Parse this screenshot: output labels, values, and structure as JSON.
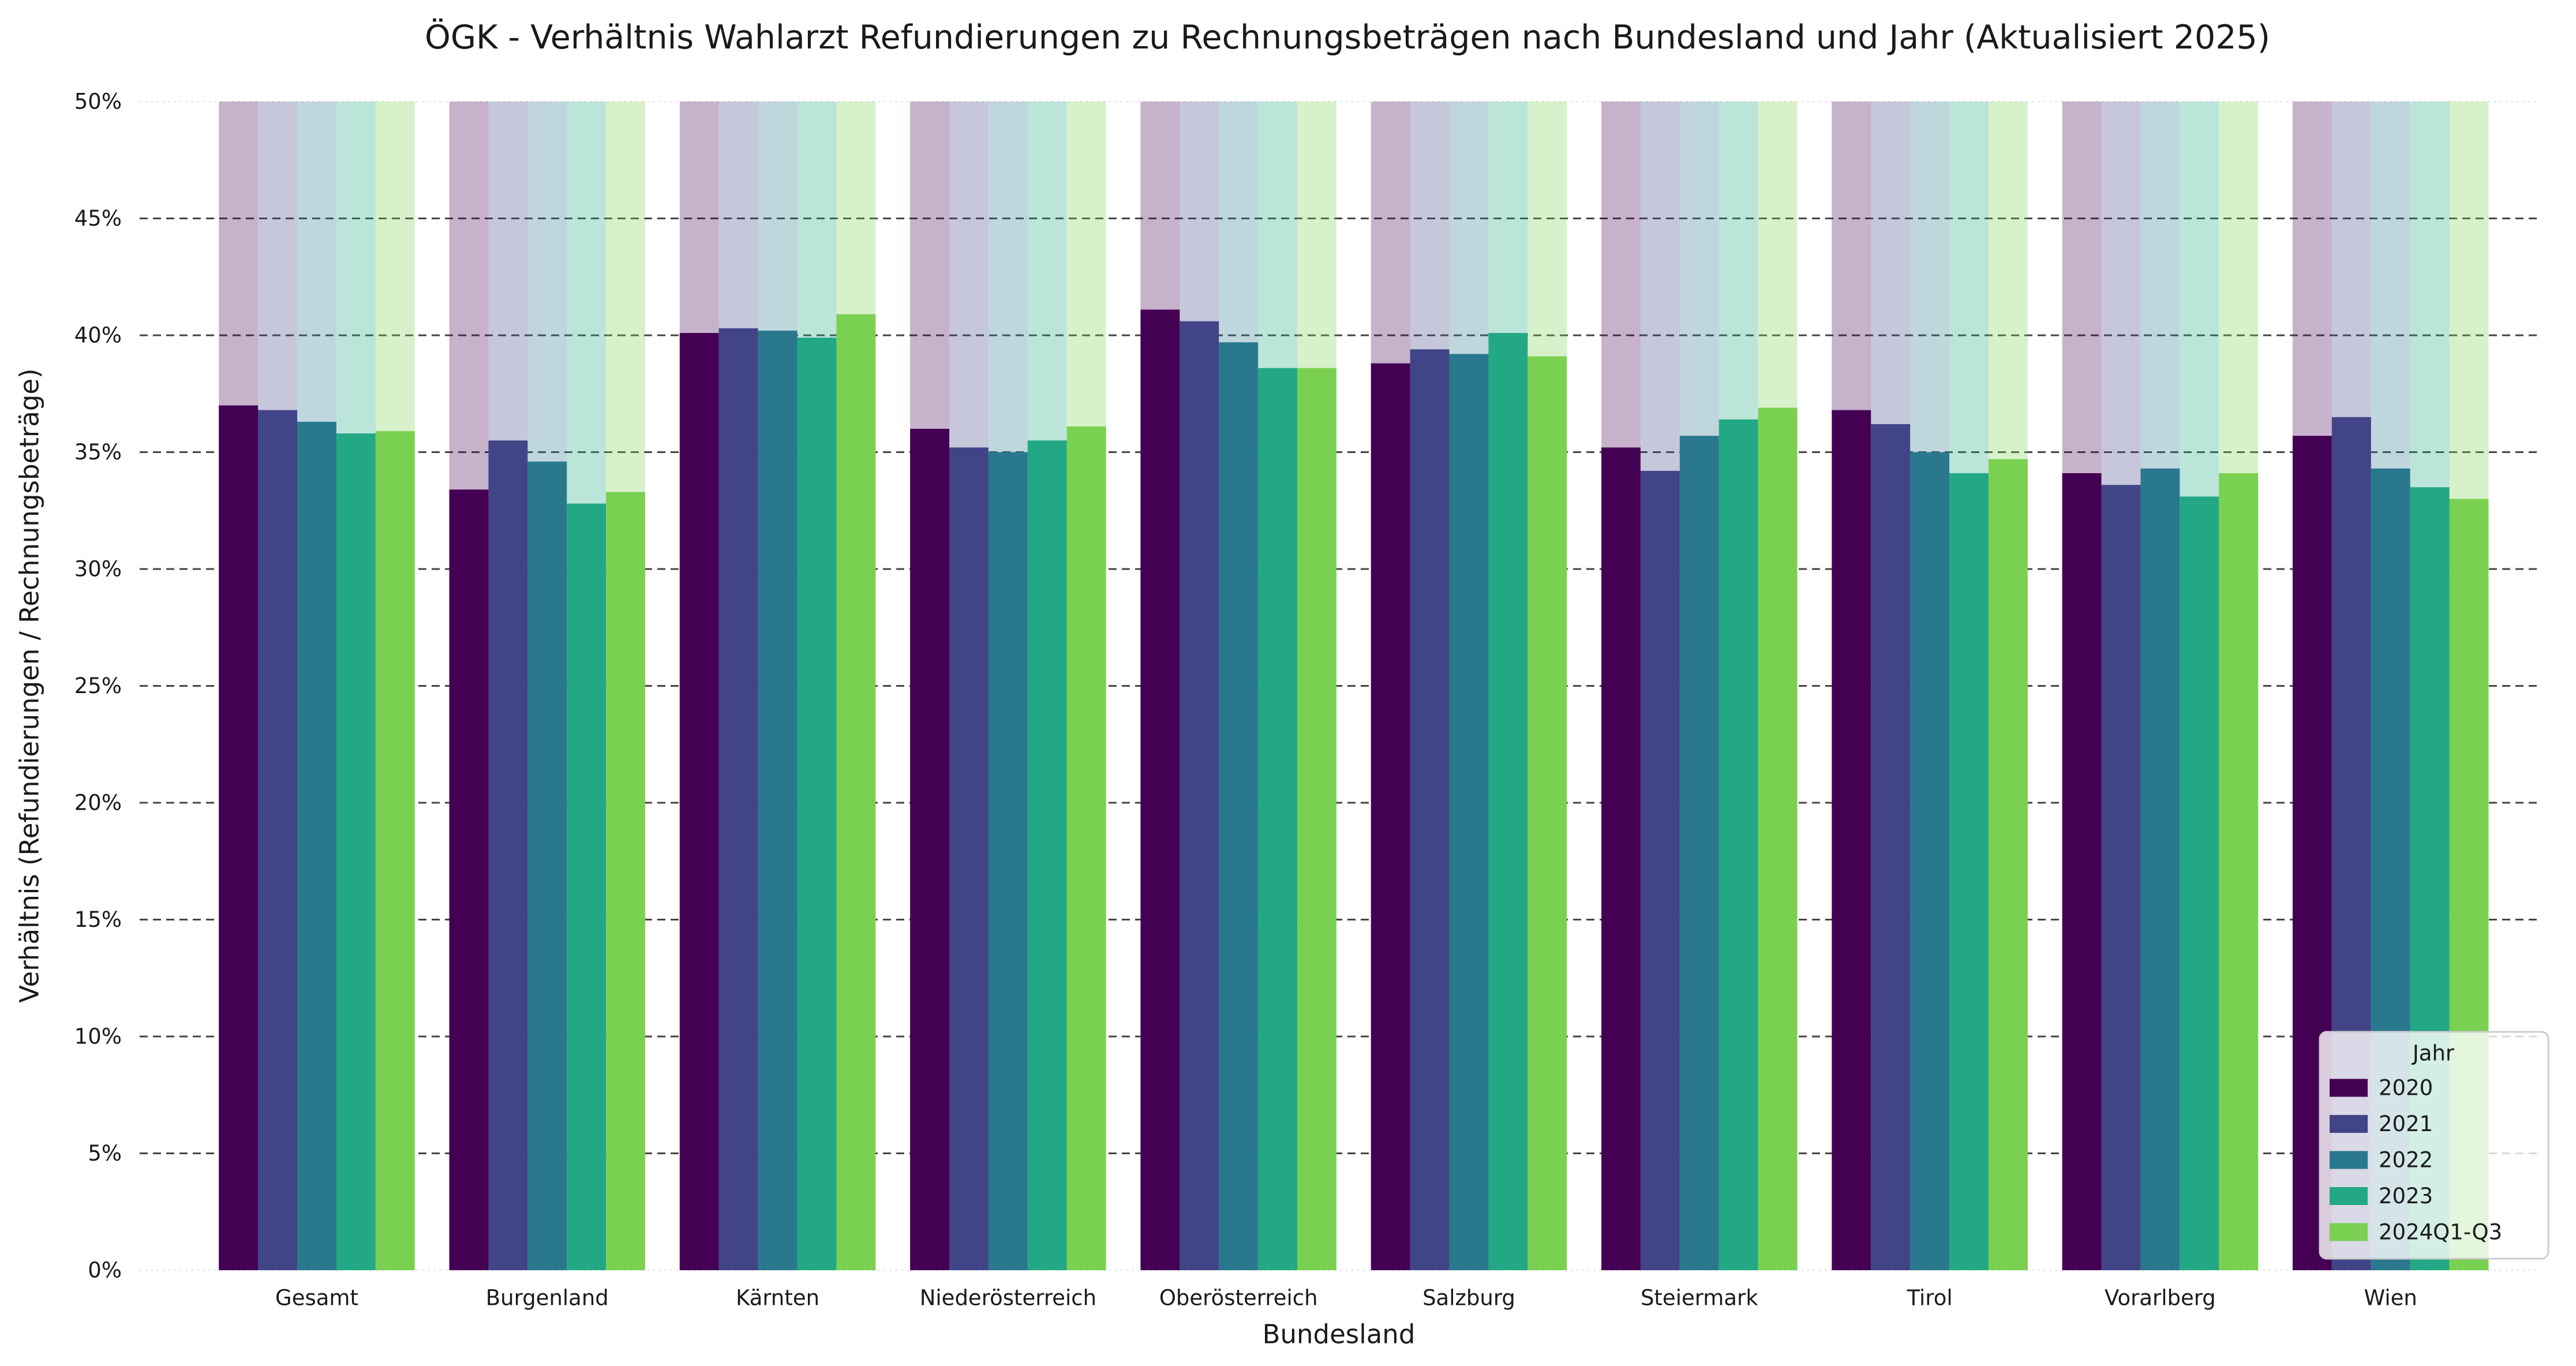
{
  "chart_data": {
    "type": "bar",
    "title": "ÖGK - Verhältnis Wahlarzt Refundierungen zu Rechnungsbeträgen nach Bundesland und Jahr (Aktualisiert 2025)",
    "xlabel": "Bundesland",
    "ylabel": "Verhältnis (Refundierungen / Rechnungsbeträge)",
    "ylim": [
      0,
      50
    ],
    "yticks": [
      0,
      5,
      10,
      15,
      20,
      25,
      30,
      35,
      40,
      45,
      50
    ],
    "ytick_labels": [
      "0%",
      "5%",
      "10%",
      "15%",
      "20%",
      "25%",
      "30%",
      "35%",
      "40%",
      "45%",
      "50%"
    ],
    "grid": true,
    "legend_title": "Jahr",
    "legend_position": "bottom-right",
    "categories": [
      "Gesamt",
      "Burgenland",
      "Kärnten",
      "Niederösterreich",
      "Oberösterreich",
      "Salzburg",
      "Steiermark",
      "Tirol",
      "Vorarlberg",
      "Wien"
    ],
    "series": [
      {
        "name": "2020",
        "color": "#440154",
        "values": [
          37.0,
          33.4,
          40.1,
          36.0,
          41.1,
          38.8,
          35.2,
          36.8,
          34.1,
          35.7
        ]
      },
      {
        "name": "2021",
        "color": "#414487",
        "values": [
          36.8,
          35.5,
          40.3,
          35.2,
          40.6,
          39.4,
          34.2,
          36.2,
          33.6,
          36.5
        ]
      },
      {
        "name": "2022",
        "color": "#2a788e",
        "values": [
          36.3,
          34.6,
          40.2,
          35.0,
          39.7,
          39.2,
          35.7,
          35.0,
          34.3,
          34.3
        ]
      },
      {
        "name": "2023",
        "color": "#22a884",
        "values": [
          35.8,
          32.8,
          39.9,
          35.5,
          38.6,
          40.1,
          36.4,
          34.1,
          33.1,
          33.5
        ]
      },
      {
        "name": "2024Q1-Q3",
        "color": "#7ad151",
        "values": [
          35.9,
          33.3,
          40.9,
          36.1,
          38.6,
          39.1,
          36.9,
          34.7,
          34.1,
          33.0
        ]
      }
    ]
  }
}
